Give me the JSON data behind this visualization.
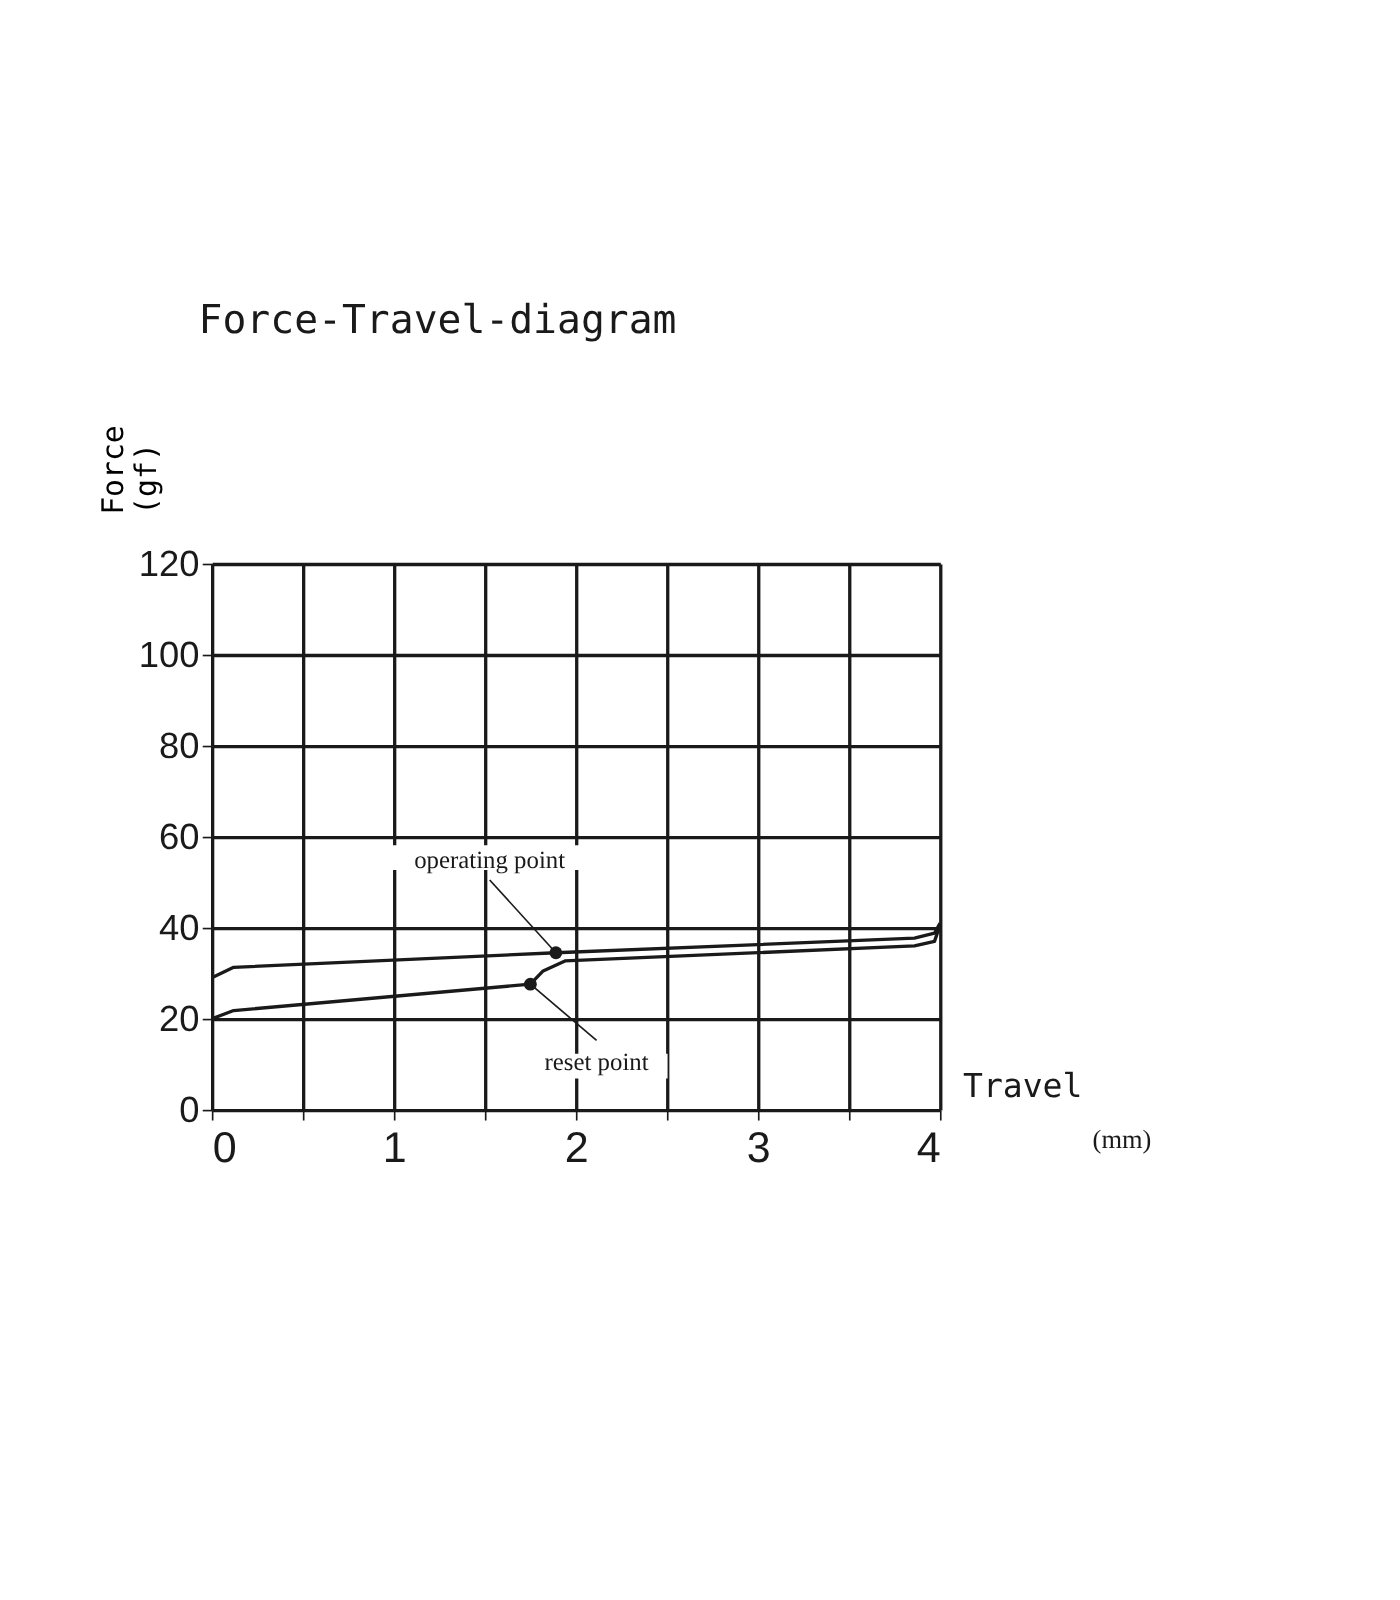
{
  "chart_data": {
    "type": "line",
    "title": "Force-Travel-diagram",
    "xlabel": "Travel (mm)",
    "ylabel": "Force (gf)",
    "series": [
      {
        "color": "#1a1a1a",
        "x": [
          0,
          0.12,
          1.89,
          3.86,
          3.97,
          4.0
        ],
        "values": [
          29,
          31.3,
          34.5,
          37.7,
          38.8,
          41
        ]
      },
      {
        "color": "#1a1a1a",
        "x": [
          4.0,
          3.97,
          3.86,
          1.94,
          1.82,
          1.75,
          0.12,
          0
        ],
        "values": [
          40.5,
          37,
          36,
          32.7,
          30.5,
          27.6,
          21.8,
          20
        ]
      }
    ],
    "annotations": [
      {
        "text": "operating point",
        "x": 1.89,
        "y": 34.5
      },
      {
        "text": "reset point",
        "x": 1.75,
        "y": 27.6
      }
    ],
    "xlim": [
      0,
      4
    ],
    "ylim": [
      0,
      120
    ],
    "xticks": [
      0,
      {
        "value": 0.5,
        "label": null
      },
      1,
      {
        "value": 1.5,
        "label": null
      },
      2,
      {
        "value": 2.5,
        "label": null
      },
      3,
      {
        "value": 3.5,
        "label": null
      },
      4
    ],
    "yticks": [
      0,
      20,
      40,
      60,
      80,
      100,
      120
    ],
    "grid": true,
    "legend": false,
    "marker": "none",
    "line_style": "solid"
  }
}
